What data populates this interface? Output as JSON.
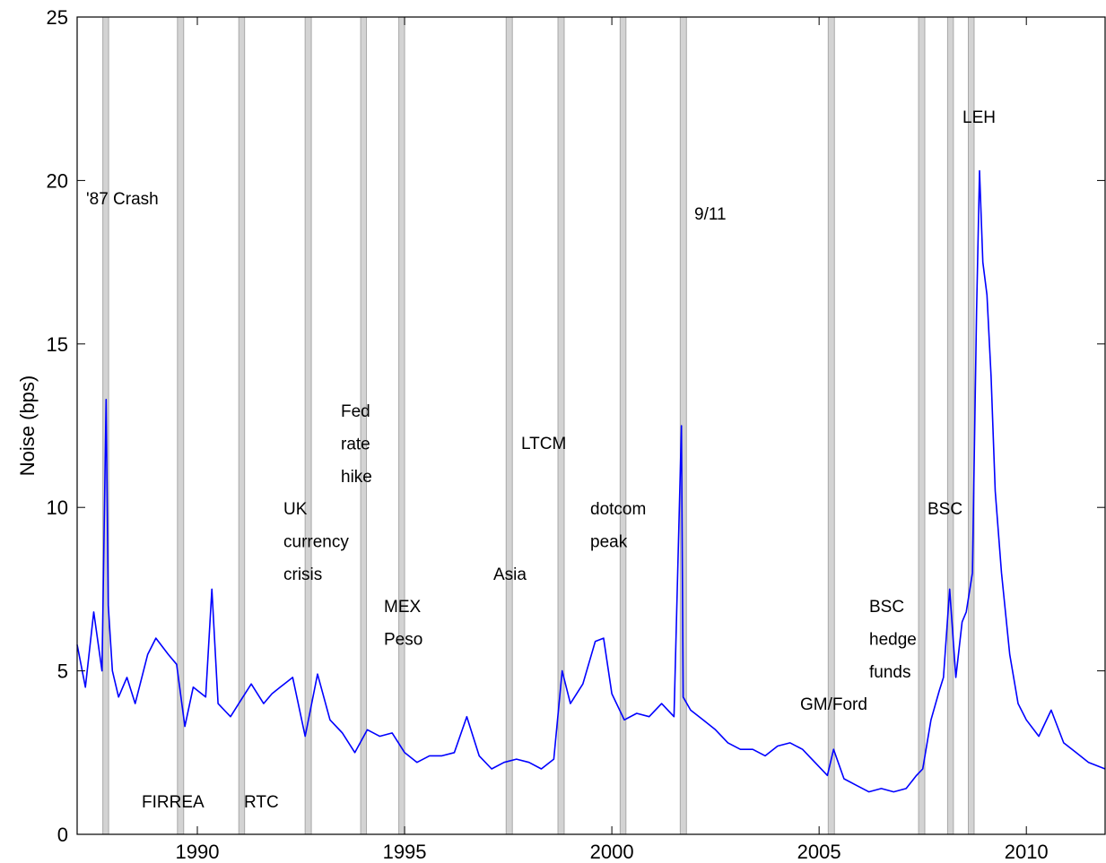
{
  "chart_data": {
    "type": "line",
    "title": "",
    "xlabel": "",
    "ylabel": "Noise (bps)",
    "xlim": [
      1987.1,
      2011.9
    ],
    "ylim": [
      0,
      25
    ],
    "x_ticks": [
      1990,
      1995,
      2000,
      2005,
      2010
    ],
    "y_ticks": [
      0,
      5,
      10,
      15,
      20,
      25
    ],
    "grid": false,
    "line_color": "#0000ff",
    "band_color": "#d3d3d3",
    "event_bands": [
      {
        "start": 1987.72,
        "end": 1987.86
      },
      {
        "start": 1989.52,
        "end": 1989.67
      },
      {
        "start": 1991.0,
        "end": 1991.14
      },
      {
        "start": 1992.6,
        "end": 1992.75
      },
      {
        "start": 1993.94,
        "end": 1994.08
      },
      {
        "start": 1994.86,
        "end": 1995.0
      },
      {
        "start": 1997.45,
        "end": 1997.6
      },
      {
        "start": 1998.7,
        "end": 1998.85
      },
      {
        "start": 2000.2,
        "end": 2000.34
      },
      {
        "start": 2001.65,
        "end": 2001.8
      },
      {
        "start": 2005.22,
        "end": 2005.37
      },
      {
        "start": 2007.4,
        "end": 2007.55
      },
      {
        "start": 2008.1,
        "end": 2008.24
      },
      {
        "start": 2008.6,
        "end": 2008.74
      }
    ],
    "annotations": [
      {
        "id": "crash87",
        "lines": [
          "'87 Crash"
        ]
      },
      {
        "id": "firrea",
        "lines": [
          "FIRREA"
        ]
      },
      {
        "id": "rtc",
        "lines": [
          "RTC"
        ]
      },
      {
        "id": "uk",
        "lines": [
          "UK",
          "currency",
          "crisis"
        ]
      },
      {
        "id": "fed",
        "lines": [
          "Fed",
          "rate",
          "hike"
        ]
      },
      {
        "id": "mex",
        "lines": [
          "MEX",
          "Peso"
        ]
      },
      {
        "id": "asia",
        "lines": [
          "Asia"
        ]
      },
      {
        "id": "ltcm",
        "lines": [
          "LTCM"
        ]
      },
      {
        "id": "dotcom",
        "lines": [
          "dotcom",
          "peak"
        ]
      },
      {
        "id": "sept11",
        "lines": [
          "9/11"
        ]
      },
      {
        "id": "gmford",
        "lines": [
          "GM/Ford"
        ]
      },
      {
        "id": "bschedge",
        "lines": [
          "BSC",
          "hedge",
          "funds"
        ]
      },
      {
        "id": "bsc",
        "lines": [
          "BSC"
        ]
      },
      {
        "id": "leh",
        "lines": [
          "LEH"
        ]
      }
    ],
    "series": [
      {
        "x": [
          1987.1,
          1987.3,
          1987.5,
          1987.7,
          1987.8,
          1987.85,
          1987.95,
          1988.1,
          1988.3,
          1988.5,
          1988.8,
          1989.0,
          1989.3,
          1989.5,
          1989.7,
          1989.9,
          1990.2,
          1990.35,
          1990.5,
          1990.8,
          1991.0,
          1991.3,
          1991.6,
          1991.8,
          1992.0,
          1992.3,
          1992.6,
          1992.9,
          1993.2,
          1993.5,
          1993.8,
          1994.1,
          1994.4,
          1994.7,
          1995.0,
          1995.3,
          1995.6,
          1995.9,
          1996.2,
          1996.5,
          1996.8,
          1997.1,
          1997.4,
          1997.7,
          1998.0,
          1998.3,
          1998.6,
          1998.8,
          1999.0,
          1999.3,
          1999.6,
          1999.8,
          2000.0,
          2000.3,
          2000.6,
          2000.9,
          2001.2,
          2001.5,
          2001.68,
          2001.72,
          2001.9,
          2002.2,
          2002.5,
          2002.8,
          2003.1,
          2003.4,
          2003.7,
          2004.0,
          2004.3,
          2004.6,
          2004.9,
          2005.2,
          2005.35,
          2005.6,
          2005.9,
          2006.2,
          2006.5,
          2006.8,
          2007.1,
          2007.35,
          2007.5,
          2007.7,
          2007.9,
          2008.0,
          2008.15,
          2008.3,
          2008.45,
          2008.55,
          2008.7,
          2008.8,
          2008.87,
          2008.95,
          2009.05,
          2009.15,
          2009.25,
          2009.4,
          2009.6,
          2009.8,
          2010.0,
          2010.3,
          2010.6,
          2010.9,
          2011.2,
          2011.5,
          2011.9
        ],
        "y": [
          5.8,
          4.5,
          6.8,
          5.0,
          13.3,
          7.0,
          5.0,
          4.2,
          4.8,
          4.0,
          5.5,
          6.0,
          5.5,
          5.2,
          3.3,
          4.5,
          4.2,
          7.5,
          4.0,
          3.6,
          4.0,
          4.6,
          4.0,
          4.3,
          4.5,
          4.8,
          3.0,
          4.9,
          3.5,
          3.1,
          2.5,
          3.2,
          3.0,
          3.1,
          2.5,
          2.2,
          2.4,
          2.4,
          2.5,
          3.6,
          2.4,
          2.0,
          2.2,
          2.3,
          2.2,
          2.0,
          2.3,
          5.0,
          4.0,
          4.6,
          5.9,
          6.0,
          4.3,
          3.5,
          3.7,
          3.6,
          4.0,
          3.6,
          12.5,
          4.2,
          3.8,
          3.5,
          3.2,
          2.8,
          2.6,
          2.6,
          2.4,
          2.7,
          2.8,
          2.6,
          2.2,
          1.8,
          2.6,
          1.7,
          1.5,
          1.3,
          1.4,
          1.3,
          1.4,
          1.8,
          2.0,
          3.5,
          4.4,
          4.8,
          7.5,
          4.8,
          6.5,
          6.8,
          8.0,
          16.0,
          20.3,
          17.5,
          16.5,
          14.0,
          10.5,
          8.0,
          5.5,
          4.0,
          3.5,
          3.0,
          3.8,
          2.8,
          2.5,
          2.2,
          2.0
        ]
      }
    ]
  }
}
